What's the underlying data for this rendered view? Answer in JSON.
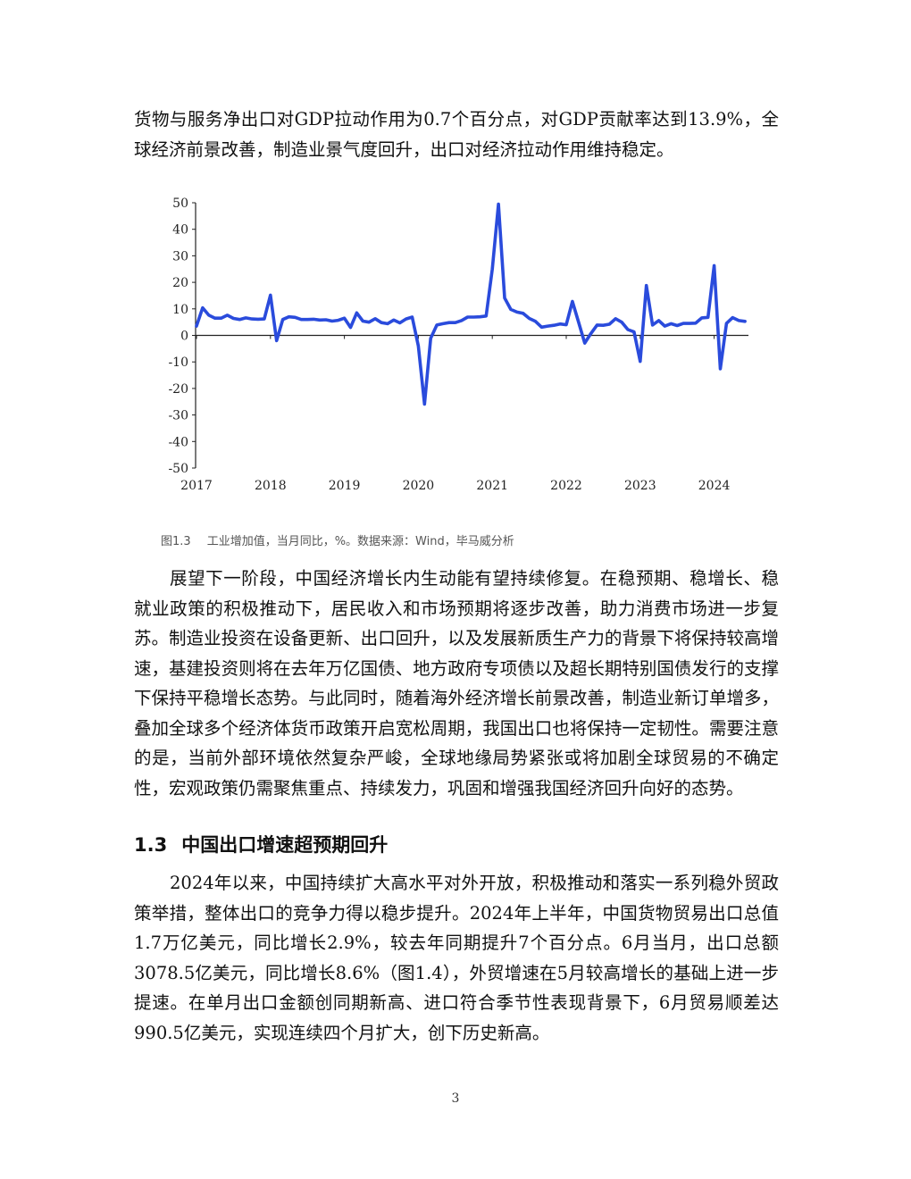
{
  "paragraphs": {
    "p1": "货物与服务净出口对GDP拉动作用为0.7个百分点，对GDP贡献率达到13.9%，全球经济前景改善，制造业景气度回升，出口对经济拉动作用维持稳定。",
    "p2": "展望下一阶段，中国经济增长内生动能有望持续修复。在稳预期、稳增长、稳就业政策的积极推动下，居民收入和市场预期将逐步改善，助力消费市场进一步复苏。制造业投资在设备更新、出口回升，以及发展新质生产力的背景下将保持较高增速，基建投资则将在去年万亿国债、地方政府专项债以及超长期特别国债发行的支撑下保持平稳增长态势。与此同时，随着海外经济增长前景改善，制造业新订单增多，叠加全球多个经济体货币政策开启宽松周期，我国出口也将保持一定韧性。需要注意的是，当前外部环境依然复杂严峻，全球地缘局势紧张或将加剧全球贸易的不确定性，宏观政策仍需聚焦重点、持续发力，巩固和增强我国经济回升向好的态势。",
    "p4": "2024年以来，中国持续扩大高水平对外开放，积极推动和落实一系列稳外贸政策举措，整体出口的竞争力得以稳步提升。2024年上半年，中国货物贸易出口总值1.7万亿美元，同比增长2.9%，较去年同期提升7个百分点。6月当月，出口总额3078.5亿美元，同比增长8.6%（图1.4），外贸增速在5月较高增长的基础上进一步提速。在单月出口金额创同期新高、进口符合季节性表现背景下，6月贸易顺差达990.5亿美元，实现连续四个月扩大，创下历史新高。"
  },
  "caption": {
    "figure_no": "图1.3",
    "text": "工业增加值，当月同比，%。数据来源：Wind，毕马威分析"
  },
  "section": {
    "number": "1.3",
    "title": "中国出口增速超预期回升"
  },
  "page_number": "3",
  "chart_data": {
    "type": "line",
    "title": "",
    "xlabel": "",
    "ylabel": "",
    "ylim": [
      -50,
      50
    ],
    "yticks": [
      "50",
      "40",
      "30",
      "20",
      "10",
      "0",
      "-10",
      "-20",
      "-30",
      "-40",
      "-50"
    ],
    "xticks": [
      "2017",
      "2018",
      "2019",
      "2020",
      "2021",
      "2022",
      "2023",
      "2024"
    ],
    "grid": false,
    "legend": "none",
    "line_color": "#2a4bdc",
    "series": [
      {
        "x_start": "2017-01",
        "values": [
          3.5,
          10.4,
          7.6,
          6.5,
          6.5,
          7.6,
          6.4,
          6.0,
          6.6,
          6.2,
          6.1,
          6.2,
          15.2,
          -2.0,
          6.0,
          7.0,
          6.8,
          6.0,
          6.0,
          6.1,
          5.8,
          5.9,
          5.4,
          5.7,
          6.5,
          3.0,
          8.5,
          5.4,
          5.0,
          6.3,
          4.8,
          4.4,
          5.8,
          4.7,
          6.2,
          6.9,
          -4.0,
          -25.9,
          -1.1,
          3.9,
          4.4,
          4.8,
          4.8,
          5.6,
          6.9,
          6.9,
          7.0,
          7.3,
          25.0,
          49.5,
          14.1,
          9.8,
          8.8,
          8.3,
          6.4,
          5.3,
          3.1,
          3.5,
          3.8,
          4.3,
          4.0,
          12.8,
          5.0,
          -2.9,
          0.7,
          3.9,
          3.8,
          4.2,
          6.3,
          5.0,
          2.2,
          1.3,
          -9.8,
          18.8,
          3.9,
          5.6,
          3.5,
          4.4,
          3.7,
          4.5,
          4.5,
          4.6,
          6.6,
          6.8,
          26.3,
          -12.6,
          4.5,
          6.7,
          5.6,
          5.3
        ]
      }
    ]
  }
}
